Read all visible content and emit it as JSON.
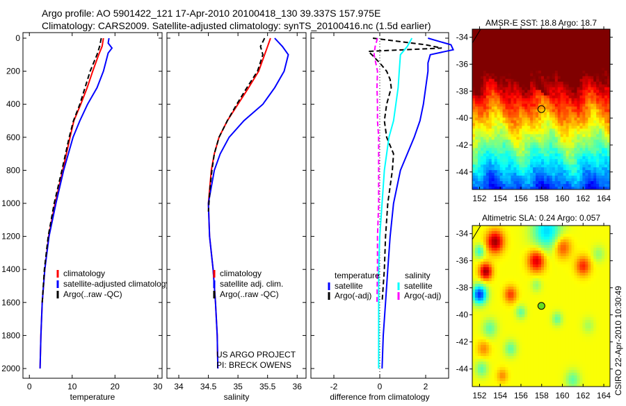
{
  "header": {
    "line1": "Argo profile: AO 5901422_121 17-Apr-2010 20100418_130 39.337S 157.975E",
    "line2": "Climatology: CARS2009. Satellite-adjusted climatology: synTS_20100416.nc (1.5d earlier)"
  },
  "credit": {
    "project": "US ARGO PROJECT",
    "pi": "PI: BRECK OWENS",
    "stamp": "CSIRO 22-Apr-2010 10:30:49"
  },
  "colors": {
    "red": "#ff0000",
    "blue": "#0000ff",
    "black": "#000000",
    "cyan": "#00ffff",
    "magenta": "#ff00ff"
  },
  "chart_data": [
    {
      "type": "line",
      "xlabel": "temperature",
      "ylabel": "",
      "xlim": [
        -1.5,
        31
      ],
      "ylim": [
        2000,
        0
      ],
      "xticks": [
        "0",
        "10",
        "20",
        "30"
      ],
      "xtick_values": [
        0,
        10,
        20,
        30
      ],
      "yticks": [
        "0",
        "200",
        "400",
        "600",
        "800",
        "1000",
        "1200",
        "1400",
        "1600",
        "1800",
        "2000"
      ],
      "ytick_values": [
        0,
        200,
        400,
        600,
        800,
        1000,
        1200,
        1400,
        1600,
        1800,
        2000
      ],
      "legend": [
        "climatology",
        "satellite-adjusted climatology",
        "Argo(..raw -QC)"
      ],
      "series": [
        {
          "name": "climatology",
          "color": "#ff0000",
          "dash": false,
          "depth": [
            0,
            50,
            100,
            150,
            200,
            300,
            400,
            500,
            600,
            800,
            1000,
            1200,
            1400,
            1600,
            1800,
            2000
          ],
          "values": [
            17.3,
            17,
            16.2,
            15.5,
            14.8,
            13.5,
            12,
            10.4,
            9.5,
            7.8,
            6,
            4.5,
            3.6,
            3,
            2.7,
            2.5
          ]
        },
        {
          "name": "satellite-adjusted climatology",
          "color": "#0000ff",
          "dash": false,
          "depth": [
            0,
            30,
            60,
            90,
            150,
            200,
            300,
            400,
            500,
            600,
            800,
            1000,
            1200,
            1400,
            1600,
            1800,
            2000
          ],
          "values": [
            18.6,
            18.4,
            19.3,
            18.4,
            17.8,
            17.3,
            15.8,
            13.6,
            11.8,
            10.2,
            8,
            6.2,
            4.6,
            3.6,
            3,
            2.7,
            2.5
          ]
        },
        {
          "name": "Argo(..raw -QC)",
          "color": "#000000",
          "dash": true,
          "depth": [
            0,
            50,
            100,
            150,
            200,
            300,
            400,
            500,
            600,
            800,
            1000,
            1200,
            1400,
            1600
          ],
          "values": [
            16.8,
            16.4,
            15.8,
            15,
            14.2,
            13,
            11.8,
            10.3,
            9.3,
            7.6,
            5.8,
            4.4,
            3.5,
            3
          ]
        }
      ]
    },
    {
      "type": "line",
      "xlabel": "salinity",
      "xlim": [
        33.8,
        36.15
      ],
      "ylim": [
        2000,
        0
      ],
      "xticks": [
        "34",
        "34.5",
        "35",
        "35.5",
        "36"
      ],
      "xtick_values": [
        34,
        34.5,
        35,
        35.5,
        36
      ],
      "legend": [
        "climatology",
        "satellite adj. clim.",
        "Argo(..raw -QC)"
      ],
      "series": [
        {
          "name": "climatology",
          "color": "#ff0000",
          "dash": false,
          "depth": [
            0,
            50,
            100,
            200,
            300,
            400,
            500,
            600,
            700,
            800,
            1000,
            1200,
            1400,
            1600,
            1800,
            2000
          ],
          "values": [
            35.55,
            35.5,
            35.45,
            35.35,
            35.18,
            35.0,
            34.82,
            34.68,
            34.6,
            34.55,
            34.5,
            34.52,
            34.58,
            34.62,
            34.65,
            34.66
          ]
        },
        {
          "name": "satellite adj. clim.",
          "color": "#0000ff",
          "dash": false,
          "depth": [
            0,
            50,
            100,
            200,
            300,
            400,
            500,
            600,
            700,
            800,
            1000,
            1200,
            1400,
            1600,
            1800,
            2000
          ],
          "values": [
            35.62,
            35.75,
            35.85,
            35.78,
            35.62,
            35.42,
            35.1,
            34.85,
            34.7,
            34.6,
            34.5,
            34.52,
            34.58,
            34.62,
            34.65,
            34.66
          ]
        },
        {
          "name": "Argo(..raw -QC)",
          "color": "#000000",
          "dash": true,
          "depth": [
            0,
            50,
            100,
            200,
            300,
            400,
            500,
            600,
            700,
            800,
            900,
            1000,
            1050
          ],
          "values": [
            35.45,
            35.38,
            35.42,
            35.33,
            35.15,
            34.98,
            34.82,
            34.68,
            34.6,
            34.56,
            34.53,
            34.51,
            34.5
          ]
        }
      ]
    },
    {
      "type": "line",
      "xlabel": "difference from climatology",
      "xlim": [
        -3,
        3
      ],
      "ylim": [
        2000,
        0
      ],
      "xticks": [
        "-2",
        "0",
        "2"
      ],
      "xtick_values": [
        -2,
        0,
        2
      ],
      "legend_titles": [
        "temperature",
        "salinity"
      ],
      "legend": [
        "satellite",
        "Argo(-adj)",
        "satellite",
        "Argo(-adj)"
      ],
      "series": [
        {
          "name": "temperature satellite",
          "color": "#0000ff",
          "dash": false,
          "depth": [
            0,
            20,
            40,
            70,
            100,
            150,
            200,
            300,
            400,
            500,
            600,
            700,
            800,
            1000,
            1200,
            1400,
            1600,
            1800,
            2000
          ],
          "values": [
            2.1,
            2.6,
            3.1,
            3.2,
            2.2,
            2.1,
            2.1,
            2.0,
            1.9,
            1.75,
            1.5,
            1.2,
            0.9,
            0.6,
            0.45,
            0.35,
            0.25,
            0.15,
            0.1
          ]
        },
        {
          "name": "temperature Argo(-adj)",
          "color": "#000000",
          "dash": true,
          "depth": [
            0,
            40,
            60,
            80,
            100,
            150,
            200,
            250,
            300,
            400,
            500,
            600,
            700,
            800,
            1000,
            1200,
            1400,
            1600
          ],
          "values": [
            -0.3,
            2.0,
            2.7,
            -0.5,
            -0.35,
            0.0,
            0.3,
            0.45,
            0.5,
            0.3,
            0.2,
            0.3,
            0.6,
            0.55,
            0.35,
            0.25,
            0.2,
            0.1
          ]
        },
        {
          "name": "salinity satellite",
          "color": "#00ffff",
          "dash": false,
          "depth": [
            0,
            50,
            100,
            200,
            300,
            400,
            500,
            600,
            700,
            800,
            1000,
            1200,
            1400,
            1600,
            1800,
            2000
          ],
          "values": [
            1.4,
            1.2,
            0.9,
            0.85,
            0.8,
            0.7,
            0.6,
            0.4,
            0.3,
            0.2,
            0.1,
            0.0,
            -0.05,
            -0.05,
            -0.05,
            -0.05
          ]
        },
        {
          "name": "salinity Argo(-adj)",
          "color": "#ff00ff",
          "dash": true,
          "depth": [
            0,
            50,
            100,
            200,
            300,
            400,
            500,
            600,
            800,
            1000,
            1200,
            1400,
            1600
          ],
          "values": [
            -0.1,
            -0.2,
            -0.25,
            -0.1,
            -0.12,
            -0.1,
            -0.1,
            -0.05,
            -0.05,
            -0.05,
            -0.1,
            -0.1,
            -0.12
          ]
        }
      ]
    },
    {
      "type": "heatmap",
      "title": "AMSR-E SST: 18.8 Argo: 18.7",
      "xlim": [
        151.3,
        164.6
      ],
      "ylim": [
        -45.3,
        -33.4
      ],
      "xticks": [
        "152",
        "154",
        "156",
        "158",
        "160",
        "162",
        "164"
      ],
      "xtick_values": [
        152,
        154,
        156,
        158,
        160,
        162,
        164
      ],
      "yticks": [
        "-34",
        "-36",
        "-38",
        "-40",
        "-42",
        "-44"
      ],
      "ytick_values": [
        -34,
        -36,
        -38,
        -40,
        -42,
        -44
      ],
      "marker": {
        "lon": 157.975,
        "lat": -39.337
      }
    },
    {
      "type": "heatmap",
      "title": "Altimetric SLA: 0.24 Argo: 0.057",
      "xlim": [
        151.3,
        164.6
      ],
      "ylim": [
        -45.3,
        -33.4
      ],
      "xticks": [
        "152",
        "154",
        "156",
        "158",
        "160",
        "162",
        "164"
      ],
      "xtick_values": [
        152,
        154,
        156,
        158,
        160,
        162,
        164
      ],
      "yticks": [
        "-34",
        "-36",
        "-38",
        "-40",
        "-42",
        "-44"
      ],
      "ytick_values": [
        -34,
        -36,
        -38,
        -40,
        -42,
        -44
      ],
      "marker": {
        "lon": 157.975,
        "lat": -39.337
      }
    }
  ]
}
